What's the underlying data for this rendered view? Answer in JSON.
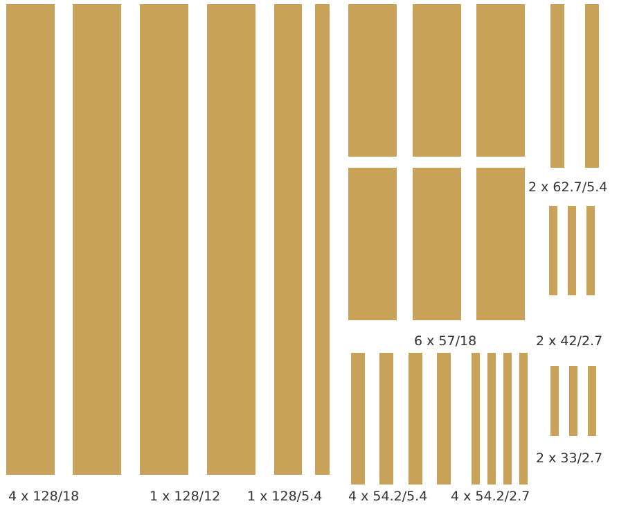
{
  "colors": {
    "wood": "#c8a258",
    "text": "#333333",
    "background": "#ffffff"
  },
  "groups": [
    {
      "id": "g1",
      "label": "4 x 128/18",
      "count": 4,
      "length": 128,
      "width": 18
    },
    {
      "id": "g2",
      "label": "1 x 128/12",
      "count": 1,
      "length": 128,
      "width": 12
    },
    {
      "id": "g3",
      "label": "1 x 128/5.4",
      "count": 1,
      "length": 128,
      "width": 5.4
    },
    {
      "id": "g4",
      "label": "6 x 57/18",
      "count": 6,
      "length": 57,
      "width": 18
    },
    {
      "id": "g5",
      "label": "2 x 62.7/5.4",
      "count": 2,
      "length": 62.7,
      "width": 5.4
    },
    {
      "id": "g6",
      "label": "2 x 42/2.7",
      "count": 2,
      "length": 42,
      "width": 2.7
    },
    {
      "id": "g7",
      "label": "4 x 54.2/5.4",
      "count": 4,
      "length": 54.2,
      "width": 5.4
    },
    {
      "id": "g8",
      "label": "4 x 54.2/2.7",
      "count": 4,
      "length": 54.2,
      "width": 2.7
    },
    {
      "id": "g9",
      "label": "2 x 33/2.7",
      "count": 2,
      "length": 33,
      "width": 2.7
    }
  ]
}
